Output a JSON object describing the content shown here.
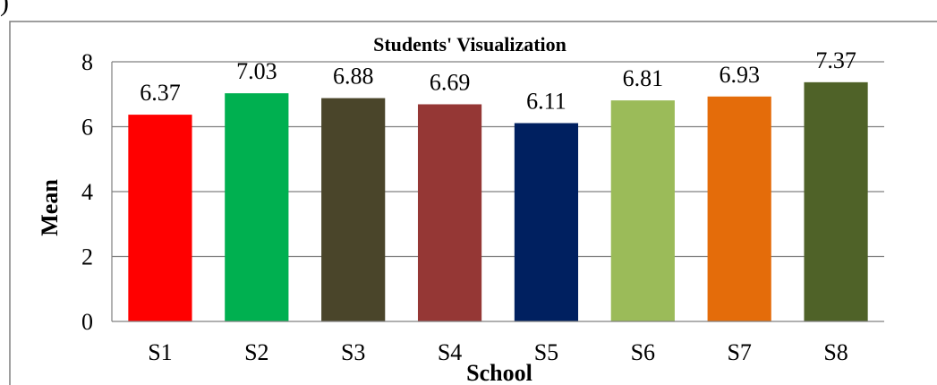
{
  "chart_data": {
    "type": "bar",
    "title": "Students' Visualization",
    "xlabel": "School",
    "ylabel": "Mean",
    "categories": [
      "S1",
      "S2",
      "S3",
      "S4",
      "S5",
      "S6",
      "S7",
      "S8"
    ],
    "values": [
      6.37,
      7.03,
      6.88,
      6.69,
      6.11,
      6.81,
      6.93,
      7.37
    ],
    "data_labels": [
      "6.37",
      "7.03",
      "6.88",
      "6.69",
      "6.11",
      "6.81",
      "6.93",
      "7.37"
    ],
    "colors": [
      "#ff0000",
      "#00b050",
      "#4a452a",
      "#953735",
      "#002060",
      "#9bbb59",
      "#e46c0a",
      "#4f6228"
    ],
    "ylim": [
      0,
      8
    ],
    "yticks": [
      "0",
      "2",
      "4",
      "6",
      "8"
    ],
    "grid": true,
    "legend": "none"
  },
  "corner_mark": ")"
}
